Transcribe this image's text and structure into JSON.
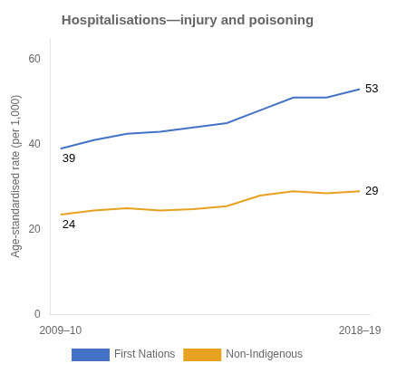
{
  "chart_data": {
    "type": "line",
    "title": "Hospitalisations—injury and poisoning",
    "y_label": "Age-standardised rate (per 1,000)",
    "x": [
      0,
      1,
      2,
      3,
      4,
      5,
      6,
      7,
      8,
      9
    ],
    "xlim": [
      -0.3,
      9.3
    ],
    "xticks": [
      {
        "value": 0,
        "label": "2009–10"
      },
      {
        "value": 9,
        "label": "2018–19"
      }
    ],
    "ylim": [
      0,
      65
    ],
    "yticks": [
      0,
      20,
      40,
      60
    ],
    "series": [
      {
        "name": "First Nations",
        "color": "#4472C4",
        "values": [
          39,
          41,
          42.5,
          43,
          44,
          45,
          48,
          51,
          51,
          53
        ]
      },
      {
        "name": "Non-Indigenous",
        "color": "#E8A020",
        "values": [
          23.5,
          24.5,
          25,
          24.5,
          24.8,
          25.5,
          28,
          29,
          28.5,
          29
        ]
      }
    ],
    "annotations": [
      {
        "text": "39",
        "x": 0,
        "y": 39
      },
      {
        "text": "24",
        "x": 0,
        "y": 23.5
      },
      {
        "text": "53",
        "x": 9,
        "y": 53
      },
      {
        "text": "29",
        "x": 9,
        "y": 29
      }
    ],
    "grid": false,
    "legend": "bottom"
  }
}
